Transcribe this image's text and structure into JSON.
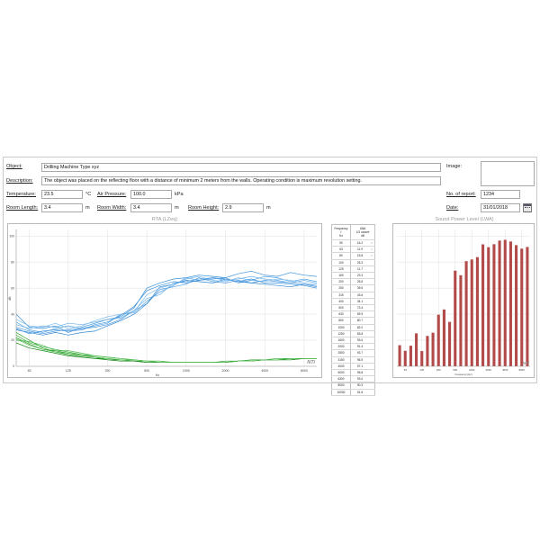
{
  "form": {
    "object_label": "Object:",
    "object_value": "Drilling Machine Type xyz",
    "image_label": "Image:",
    "description_label": "Description:",
    "description_value": "The object was placed on the reflecting floor with a distance of minimum 2 meters from the walls. Operating condition is maximum revolution setting.",
    "temperature_label": "Temperature:",
    "temperature_value": "23.5",
    "temperature_unit": "°C",
    "air_pressure_label": "Air Pressure:",
    "air_pressure_value": "100.0",
    "air_pressure_unit": "kPa",
    "report_no_label": "No. of report:",
    "report_no_value": "1234",
    "room_length_label": "Room Length:",
    "room_length_value": "3.4",
    "room_width_label": "Room Width:",
    "room_width_value": "3.4",
    "room_height_label": "Room Height:",
    "room_height_value": "2.9",
    "meter_unit": "m",
    "date_label": "Date:",
    "date_value": "31/01/2018",
    "calendar_icon": "calendar-icon"
  },
  "freq_table": {
    "header_col1": [
      "Frequency",
      "f",
      "Hz"
    ],
    "header_col2": [
      "LWA",
      "1/3 octave",
      "dB"
    ],
    "rows": [
      {
        "f": "50",
        "v": "16.2",
        "m": "<"
      },
      {
        "f": "63",
        "v": "11.9",
        "m": "<"
      },
      {
        "f": "80",
        "v": "15.8",
        "m": "<"
      },
      {
        "f": "100",
        "v": "25.3",
        "m": ""
      },
      {
        "f": "125",
        "v": "11.7",
        "m": ""
      },
      {
        "f": "160",
        "v": "23.3",
        "m": ""
      },
      {
        "f": "200",
        "v": "25.8",
        "m": ""
      },
      {
        "f": "250",
        "v": "39.6",
        "m": ""
      },
      {
        "f": "315",
        "v": "43.6",
        "m": ""
      },
      {
        "f": "400",
        "v": "34.1",
        "m": ""
      },
      {
        "f": "500",
        "v": "73.4",
        "m": ""
      },
      {
        "f": "630",
        "v": "69.9",
        "m": ""
      },
      {
        "f": "800",
        "v": "80.7",
        "m": ""
      },
      {
        "f": "1000",
        "v": "82.0",
        "m": ""
      },
      {
        "f": "1250",
        "v": "83.8",
        "m": ""
      },
      {
        "f": "1600",
        "v": "93.6",
        "m": ""
      },
      {
        "f": "2000",
        "v": "91.4",
        "m": ""
      },
      {
        "f": "2500",
        "v": "93.7",
        "m": ""
      },
      {
        "f": "3150",
        "v": "96.5",
        "m": ""
      },
      {
        "f": "4000",
        "v": "97.1",
        "m": ""
      },
      {
        "f": "5000",
        "v": "95.8",
        "m": ""
      },
      {
        "f": "6300",
        "v": "93.0",
        "m": ""
      },
      {
        "f": "8000",
        "v": "90.3",
        "m": ""
      },
      {
        "f": "10000",
        "v": "91.6",
        "m": ""
      }
    ]
  },
  "chart_data": [
    {
      "type": "line",
      "title": "RTA (LZeq)",
      "xlabel": "Hz",
      "ylabel": "dB",
      "x_scale": "log",
      "xlim": [
        50,
        10000
      ],
      "ylim": [
        0,
        105
      ],
      "x_ticks": [
        "63",
        "125",
        "250",
        "500",
        "1000",
        "2000",
        "4000",
        "8000"
      ],
      "x_tick_values": [
        63,
        125,
        250,
        500,
        1000,
        2000,
        4000,
        8000
      ],
      "y_ticks": [
        "0",
        "20",
        "40",
        "60",
        "80",
        "100"
      ],
      "y_tick_values": [
        0,
        20,
        40,
        60,
        80,
        100
      ],
      "grid": true,
      "logo_text": "NTi",
      "x": [
        50,
        63,
        80,
        100,
        125,
        160,
        200,
        250,
        315,
        400,
        500,
        630,
        800,
        1000,
        1250,
        1600,
        2000,
        2500,
        3150,
        4000,
        5000,
        6300,
        8000,
        10000
      ],
      "series": [
        {
          "color": "#3a8fd6",
          "values": [
            40,
            30,
            29,
            31,
            26,
            30,
            33,
            36,
            38,
            45,
            60,
            64,
            67,
            68,
            70,
            69,
            68,
            71,
            73,
            70,
            69,
            72,
            70,
            69
          ]
        },
        {
          "color": "#5aa5e2",
          "values": [
            34,
            28,
            26,
            29,
            31,
            29,
            31,
            33,
            40,
            41,
            50,
            57,
            62,
            68,
            66,
            67,
            68,
            64,
            66,
            69,
            68,
            65,
            67,
            65
          ]
        },
        {
          "color": "#4c9ae0",
          "values": [
            30,
            27,
            25,
            27,
            28,
            29,
            30,
            32,
            36,
            43,
            48,
            59,
            61,
            63,
            68,
            65,
            64,
            66,
            64,
            66,
            65,
            64,
            63,
            62
          ]
        },
        {
          "color": "#6cb0e8",
          "values": [
            32,
            29,
            31,
            30,
            33,
            32,
            34,
            36,
            37,
            43,
            52,
            55,
            64,
            65,
            67,
            68,
            66,
            67,
            69,
            67,
            66,
            64,
            66,
            64
          ]
        },
        {
          "color": "#2f86d0",
          "values": [
            28,
            26,
            24,
            26,
            24,
            26,
            27,
            31,
            35,
            40,
            48,
            61,
            63,
            66,
            65,
            64,
            67,
            65,
            64,
            63,
            62,
            61,
            63,
            61
          ]
        },
        {
          "color": "#7dbbee",
          "values": [
            36,
            31,
            30,
            33,
            29,
            31,
            35,
            38,
            40,
            42,
            55,
            60,
            63,
            67,
            69,
            66,
            65,
            68,
            66,
            65,
            67,
            66,
            64,
            63
          ]
        },
        {
          "color": "#4395dd",
          "values": [
            29,
            25,
            27,
            28,
            27,
            28,
            32,
            34,
            39,
            46,
            58,
            62,
            65,
            64,
            66,
            68,
            67,
            65,
            67,
            64,
            64,
            63,
            62,
            60
          ]
        },
        {
          "color": "#2aa02a",
          "values": [
            26,
            20,
            14,
            11,
            9,
            7,
            6,
            6,
            5,
            4,
            4,
            3,
            3,
            3,
            3,
            3,
            4,
            4,
            5,
            5,
            6,
            6,
            6,
            6
          ]
        },
        {
          "color": "#3cae3c",
          "values": [
            24,
            18,
            15,
            13,
            11,
            9,
            8,
            7,
            6,
            5,
            4,
            4,
            3,
            3,
            3,
            3,
            3,
            4,
            4,
            5,
            5,
            6,
            6,
            6
          ]
        },
        {
          "color": "#1f8f1f",
          "values": [
            22,
            17,
            13,
            12,
            10,
            8,
            7,
            5,
            5,
            4,
            3,
            3,
            3,
            3,
            3,
            3,
            3,
            4,
            4,
            5,
            5,
            5,
            6,
            6
          ]
        },
        {
          "color": "#4dbb4d",
          "values": [
            20,
            19,
            16,
            12,
            12,
            10,
            8,
            7,
            6,
            5,
            4,
            4,
            3,
            3,
            3,
            3,
            3,
            4,
            4,
            5,
            5,
            6,
            6,
            6
          ]
        },
        {
          "color": "#158815",
          "values": [
            18,
            14,
            12,
            10,
            8,
            7,
            6,
            5,
            4,
            4,
            3,
            3,
            3,
            3,
            3,
            3,
            3,
            4,
            4,
            5,
            5,
            5,
            6,
            6
          ]
        },
        {
          "color": "#59c159",
          "values": [
            21,
            16,
            13,
            11,
            10,
            9,
            7,
            6,
            5,
            5,
            4,
            3,
            3,
            3,
            3,
            3,
            3,
            4,
            4,
            5,
            5,
            6,
            6,
            6
          ]
        }
      ]
    },
    {
      "type": "bar",
      "title": "Sound Power Level (LWA)",
      "xlabel": "Frequency [Hz]",
      "ylabel": "dB",
      "categories": [
        "50",
        "63",
        "80",
        "100",
        "125",
        "160",
        "200",
        "250",
        "315",
        "400",
        "500",
        "630",
        "800",
        "1000",
        "1250",
        "1600",
        "2000",
        "2500",
        "3150",
        "4000",
        "5000",
        "6300",
        "8000",
        "10000"
      ],
      "x_ticks": [
        "63",
        "125",
        "250",
        "500",
        "1000",
        "2000",
        "4000",
        "8000"
      ],
      "values": [
        16.2,
        11.9,
        15.8,
        25.3,
        11.7,
        23.3,
        25.8,
        39.6,
        43.6,
        34.1,
        73.4,
        69.9,
        80.7,
        82.0,
        83.8,
        93.6,
        91.4,
        93.7,
        96.5,
        97.1,
        95.8,
        93.0,
        90.3,
        91.6
      ],
      "ylim": [
        0,
        105
      ],
      "bar_color": "#b24a4a",
      "grid": true,
      "logo_text": "NTi"
    }
  ]
}
